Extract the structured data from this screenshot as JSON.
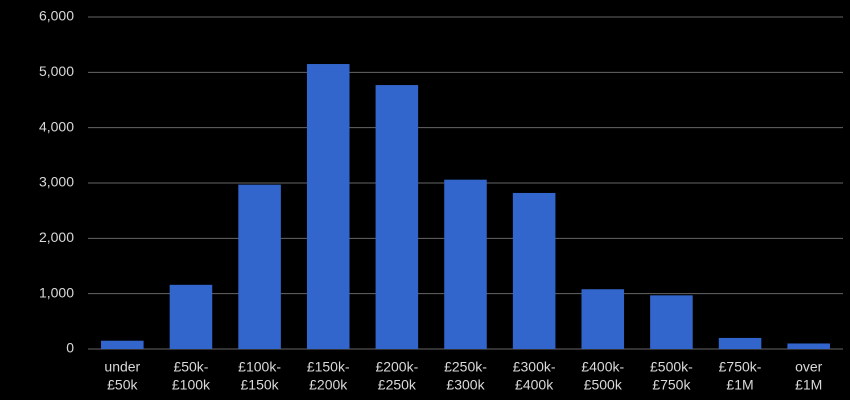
{
  "chart_data": {
    "type": "bar",
    "categories": [
      [
        "under",
        "£50k"
      ],
      [
        "£50k-",
        "£100k"
      ],
      [
        "£100k-",
        "£150k"
      ],
      [
        "£150k-",
        "£200k"
      ],
      [
        "£200k-",
        "£250k"
      ],
      [
        "£250k-",
        "£300k"
      ],
      [
        "£300k-",
        "£400k"
      ],
      [
        "£400k-",
        "£500k"
      ],
      [
        "£500k-",
        "£750k"
      ],
      [
        "£750k-",
        "£1M"
      ],
      [
        "over",
        "£1M"
      ]
    ],
    "values": [
      150,
      1160,
      2970,
      5150,
      4770,
      3060,
      2820,
      1080,
      970,
      200,
      100
    ],
    "color": "#3366cc",
    "ylim": [
      0,
      6000
    ],
    "yticks": [
      0,
      {
        "value": 1000,
        "label": "1,000"
      },
      {
        "value": 2000,
        "label": "2,000"
      },
      {
        "value": 3000,
        "label": "3,000"
      },
      {
        "value": 4000,
        "label": "4,000"
      },
      {
        "value": 5000,
        "label": "5,000"
      },
      {
        "value": 6000,
        "label": "6,000"
      }
    ],
    "grid": true
  }
}
